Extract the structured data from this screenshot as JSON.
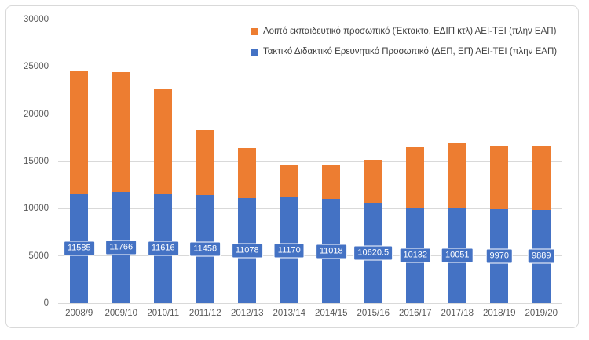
{
  "colors": {
    "bar_blue": "#4472C4",
    "bar_orange": "#ED7D31",
    "gridline": "#D9D9D9",
    "axis_text": "#595959",
    "legend_text": "#404040",
    "card_border": "#D9D9D9",
    "background": "#FFFFFF",
    "bar_label_text": "#FFFFFF"
  },
  "legend": {
    "items": [
      {
        "label": "Λοιπό εκπαιδευτικό προσωπικό (Έκτακτο, ΕΔΙΠ κτλ) ΑΕΙ-ΤΕΙ (πλην ΕΑΠ)",
        "color": "#ED7D31"
      },
      {
        "label": "Τακτικό Διδακτικό Ερευνητικό Προσωπικό (ΔΕΠ, ΕΠ) ΑΕΙ-ΤΕΙ (πλην ΕΑΠ)",
        "color": "#4472C4"
      }
    ]
  },
  "chart_data": {
    "type": "bar",
    "stacked": true,
    "title": "",
    "xlabel": "",
    "ylabel": "",
    "grid": true,
    "legend_position": "top-right",
    "categories": [
      "2008/9",
      "2009/10",
      "2010/11",
      "2011/12",
      "2012/13",
      "2013/14",
      "2014/15",
      "2015/16",
      "2016/17",
      "2017/18",
      "2018/19",
      "2019/20"
    ],
    "series": [
      {
        "name": "Τακτικό Διδακτικό Ερευνητικό Προσωπικό (ΔΕΠ, ΕΠ) ΑΕΙ-ΤΕΙ (πλην ΕΑΠ)",
        "color": "#4472C4",
        "values": [
          11585,
          11766,
          11616,
          11458,
          11078,
          11170,
          11018,
          10620.5,
          10132,
          10051,
          9970,
          9889
        ],
        "data_labels": [
          "11585",
          "11766",
          "11616",
          "11458",
          "11078",
          "11170",
          "11018",
          "10620.5",
          "10132",
          "10051",
          "9970",
          "9889"
        ]
      },
      {
        "name": "Λοιπό εκπαιδευτικό προσωπικό (Έκτακτο, ΕΔΙΠ κτλ) ΑΕΙ-ΤΕΙ (πλην ΕΑΠ)",
        "color": "#ED7D31",
        "values_estimated_from_pixels": true,
        "values": [
          13000,
          12650,
          11100,
          6850,
          5350,
          3500,
          3550,
          4550,
          6350,
          6850,
          6700,
          6650
        ]
      }
    ],
    "y_axis": {
      "min": 0,
      "max": 30000,
      "step": 5000,
      "tick_labels": [
        "0",
        "5000",
        "10000",
        "15000",
        "20000",
        "25000",
        "30000"
      ]
    }
  }
}
